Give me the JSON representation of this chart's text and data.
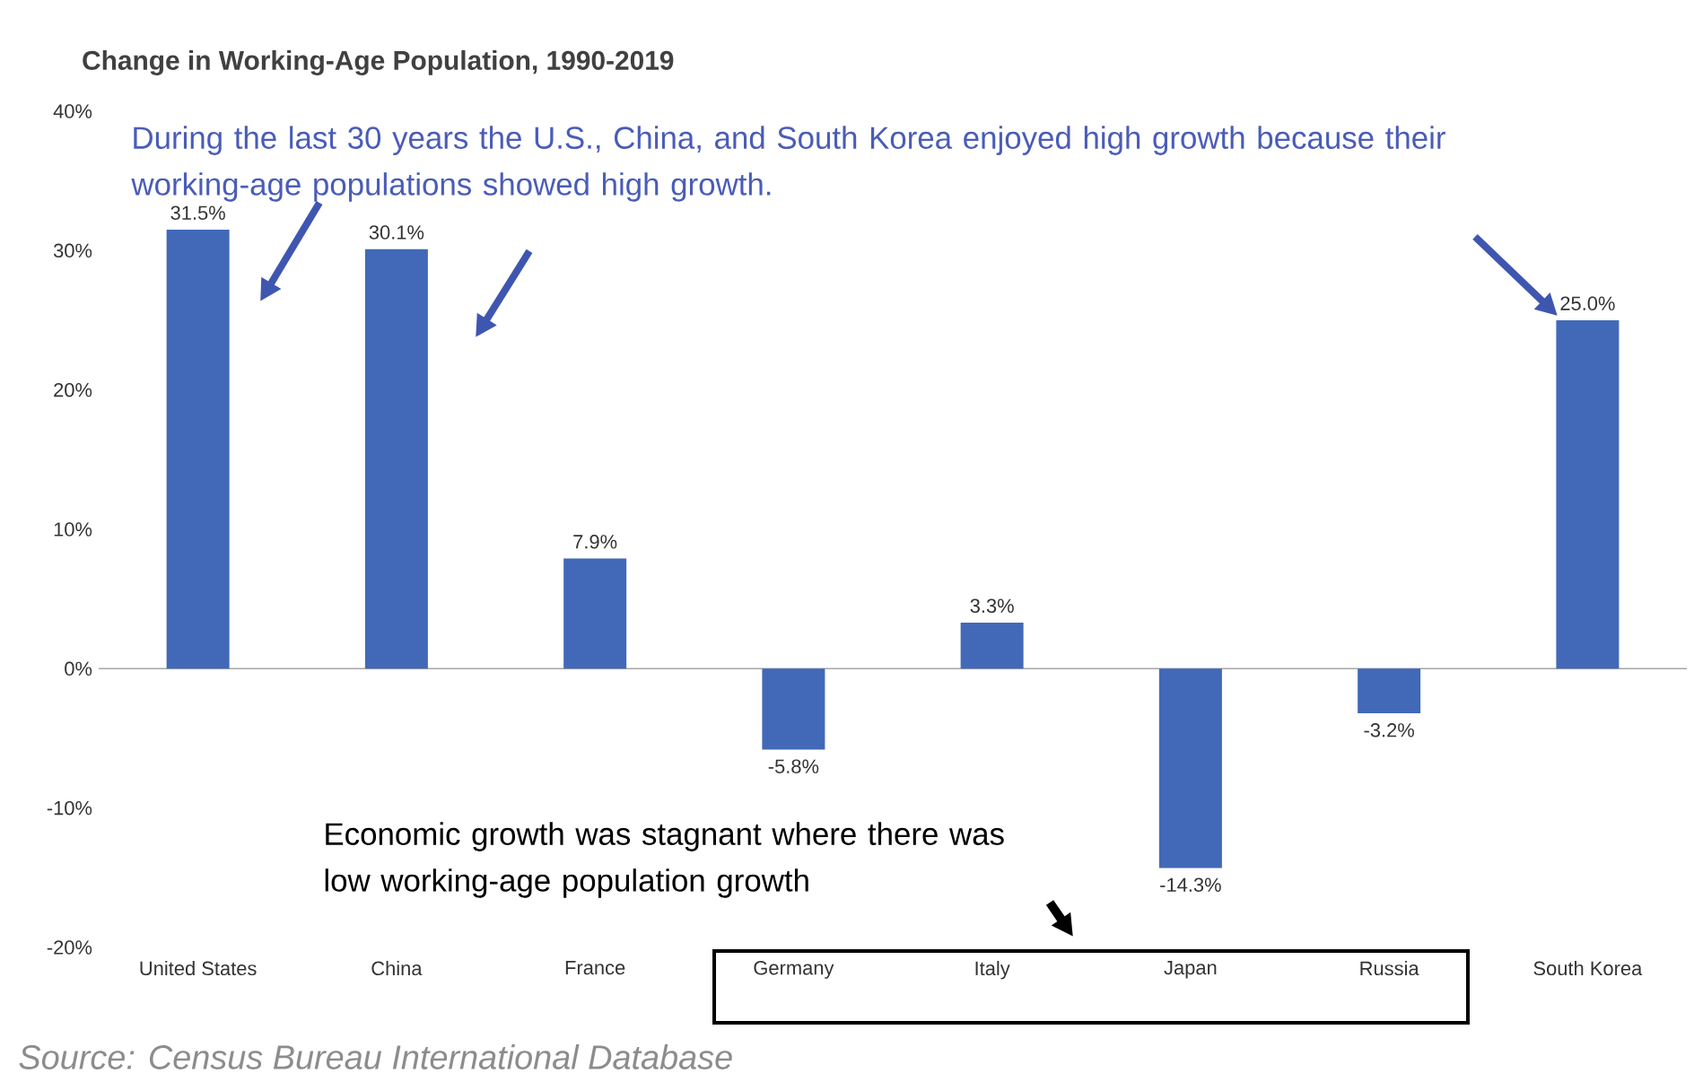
{
  "chart_data": {
    "type": "bar",
    "title": "Change in Working-Age Population, 1990-2019",
    "categories": [
      "United States",
      "China",
      "France",
      "Germany",
      "Italy",
      "Japan",
      "Russia",
      "South Korea"
    ],
    "values": [
      31.5,
      30.1,
      7.9,
      -5.8,
      3.3,
      -14.3,
      -3.2,
      25.0
    ],
    "value_labels": [
      "31.5%",
      "30.1%",
      "7.9%",
      "-5.8%",
      "3.3%",
      "-14.3%",
      "-3.2%",
      "25.0%"
    ],
    "color": "#4169b8",
    "ylim": [
      -20,
      40
    ],
    "yticks": [
      {
        "value": -20,
        "label": "-20%"
      },
      {
        "value": -10,
        "label": "-10%"
      },
      {
        "value": 0,
        "label": "0%"
      },
      {
        "value": 10,
        "label": "10%"
      },
      {
        "value": 20,
        "label": "20%"
      },
      {
        "value": 30,
        "label": "30%"
      },
      {
        "value": 40,
        "label": "40%"
      }
    ],
    "annotations": [
      "During the last 30 years the U.S., China, and South Korea enjoyed high growth because their working-age populations showed high growth.",
      "Economic growth was stagnant where there was low working-age population growth",
      "Source: Census Bureau International Database"
    ]
  }
}
